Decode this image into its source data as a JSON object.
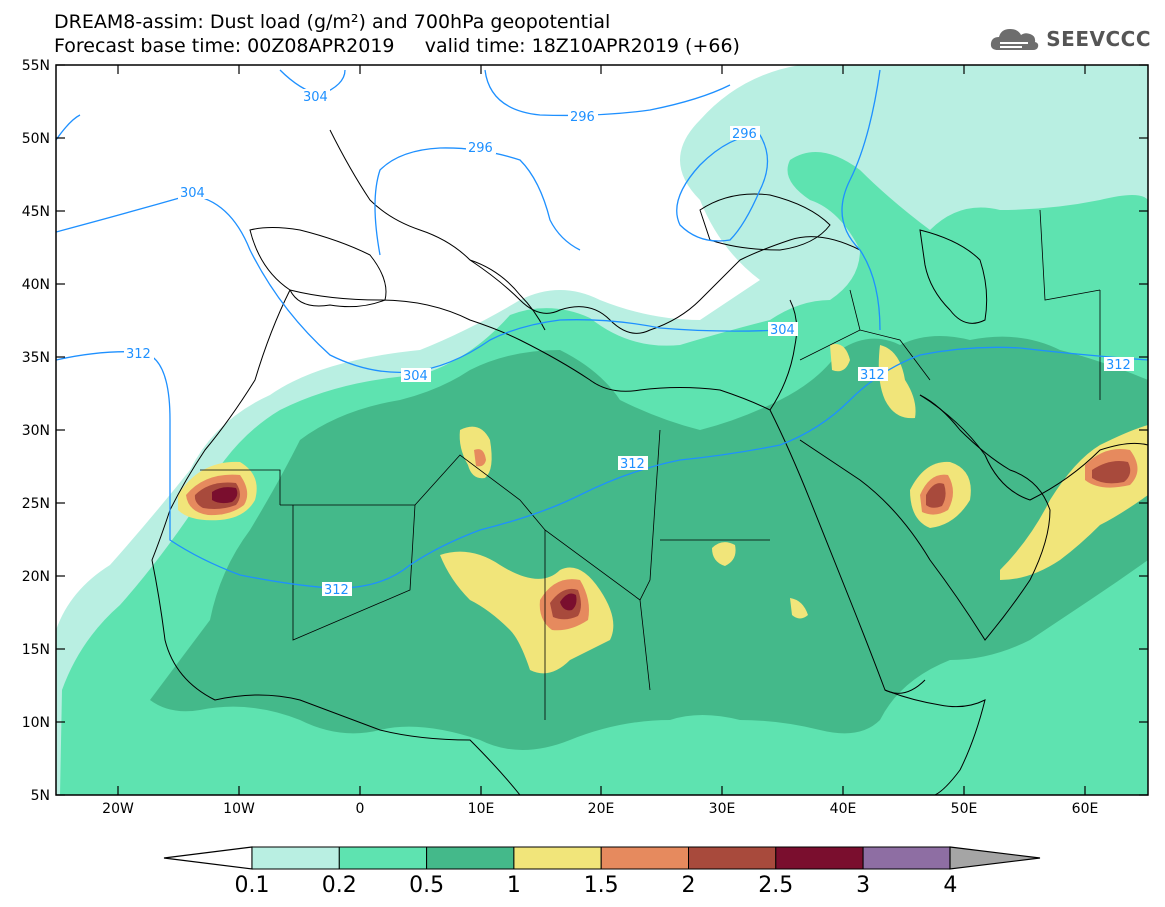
{
  "title": {
    "line1": "DREAM8-assim: Dust load (g/m²) and 700hPa geopotential",
    "line2": "Forecast base time: 00Z08APR2019     valid time: 18Z10APR2019 (+66)"
  },
  "logo": {
    "text": "SEEVCCC",
    "icon": "cloud-icon"
  },
  "axes": {
    "lon_labels": [
      "20W",
      "10W",
      "0",
      "10E",
      "20E",
      "30E",
      "40E",
      "50E",
      "60E"
    ],
    "lat_labels": [
      "55N",
      "50N",
      "45N",
      "40N",
      "35N",
      "30N",
      "25N",
      "20N",
      "15N",
      "10N",
      "5N"
    ]
  },
  "contour_labels": [
    "304",
    "296",
    "296",
    "296",
    "304",
    "312",
    "304",
    "304",
    "312",
    "312",
    "312",
    "312"
  ],
  "colorbar": {
    "ticks": [
      "0.1",
      "0.2",
      "0.5",
      "1",
      "1.5",
      "2",
      "2.5",
      "3",
      "4"
    ],
    "colors": [
      "#b9efe2",
      "#5ee3b0",
      "#44b98a",
      "#f1e57a",
      "#e68a5e",
      "#a84a3c",
      "#7a0e2e",
      "#8e6ea3",
      "#a5a5a5"
    ]
  },
  "colors": {
    "c1": "#b9efe2",
    "c2": "#5ee3b0",
    "c3": "#44b98a",
    "c4": "#f1e57a",
    "c5": "#e68a5e",
    "c6": "#a84a3c",
    "c7": "#7a0e2e",
    "contour": "#1e90ff"
  }
}
